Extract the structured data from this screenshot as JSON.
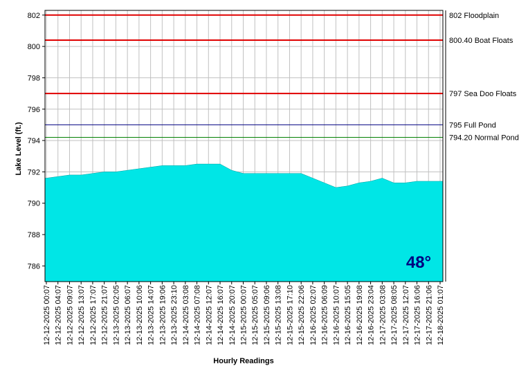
{
  "chart_data": {
    "type": "area",
    "y_label": "Lake Level (ft.)",
    "x_label": "Hourly Readings",
    "badge": "48°",
    "color": "#00e6e6",
    "grid": true,
    "ylim": [
      785,
      802.3
    ],
    "yticks": [
      786,
      788,
      790,
      792,
      794,
      796,
      798,
      800,
      802
    ],
    "categories": [
      "12-12-2025 00:07",
      "12-12-2025 04:07",
      "12-12-2025 09:07",
      "12-12-2025 13:07",
      "12-12-2025 17:07",
      "12-12-2025 21:07",
      "12-13-2025 02:05",
      "12-13-2025 06:07",
      "12-13-2025 10:06",
      "12-13-2025 14:07",
      "12-13-2025 19:06",
      "12-13-2025 23:10",
      "12-14-2025 03:08",
      "12-14-2025 07:08",
      "12-14-2025 12:07",
      "12-14-2025 16:07",
      "12-14-2025 20:07",
      "12-15-2025 00:07",
      "12-15-2025 05:07",
      "12-15-2025 09:06",
      "12-15-2025 13:08",
      "12-15-2025 17:10",
      "12-15-2025 22:06",
      "12-16-2025 02:07",
      "12-16-2025 06:09",
      "12-16-2025 10:07",
      "12-16-2025 15:05",
      "12-16-2025 19:08",
      "12-16-2025 23:04",
      "12-17-2025 03:08",
      "12-17-2025 08:05",
      "12-17-2025 12:07",
      "12-17-2025 16:06",
      "12-17-2025 21:06",
      "12-18-2025 01:07"
    ],
    "values": [
      791.6,
      791.7,
      791.8,
      791.8,
      791.9,
      792.0,
      792.0,
      792.1,
      792.2,
      792.3,
      792.4,
      792.4,
      792.4,
      792.5,
      792.5,
      792.5,
      792.1,
      791.9,
      791.9,
      791.9,
      791.9,
      791.9,
      791.9,
      791.6,
      791.3,
      791.0,
      791.1,
      791.3,
      791.4,
      791.6,
      791.3,
      791.3,
      791.4,
      791.4,
      791.4
    ],
    "reference_lines": [
      {
        "value": 802,
        "label": "802 Floodplain",
        "color": "#e00000"
      },
      {
        "value": 800.4,
        "label": "800.40 Boat Floats",
        "color": "#e00000"
      },
      {
        "value": 797,
        "label": "797 Sea Doo Floats",
        "color": "#e00000"
      },
      {
        "value": 795,
        "label": "795 Full Pond",
        "color": "#000080"
      },
      {
        "value": 794.2,
        "label": "794.20 Normal Pond",
        "color": "#008000"
      }
    ]
  }
}
